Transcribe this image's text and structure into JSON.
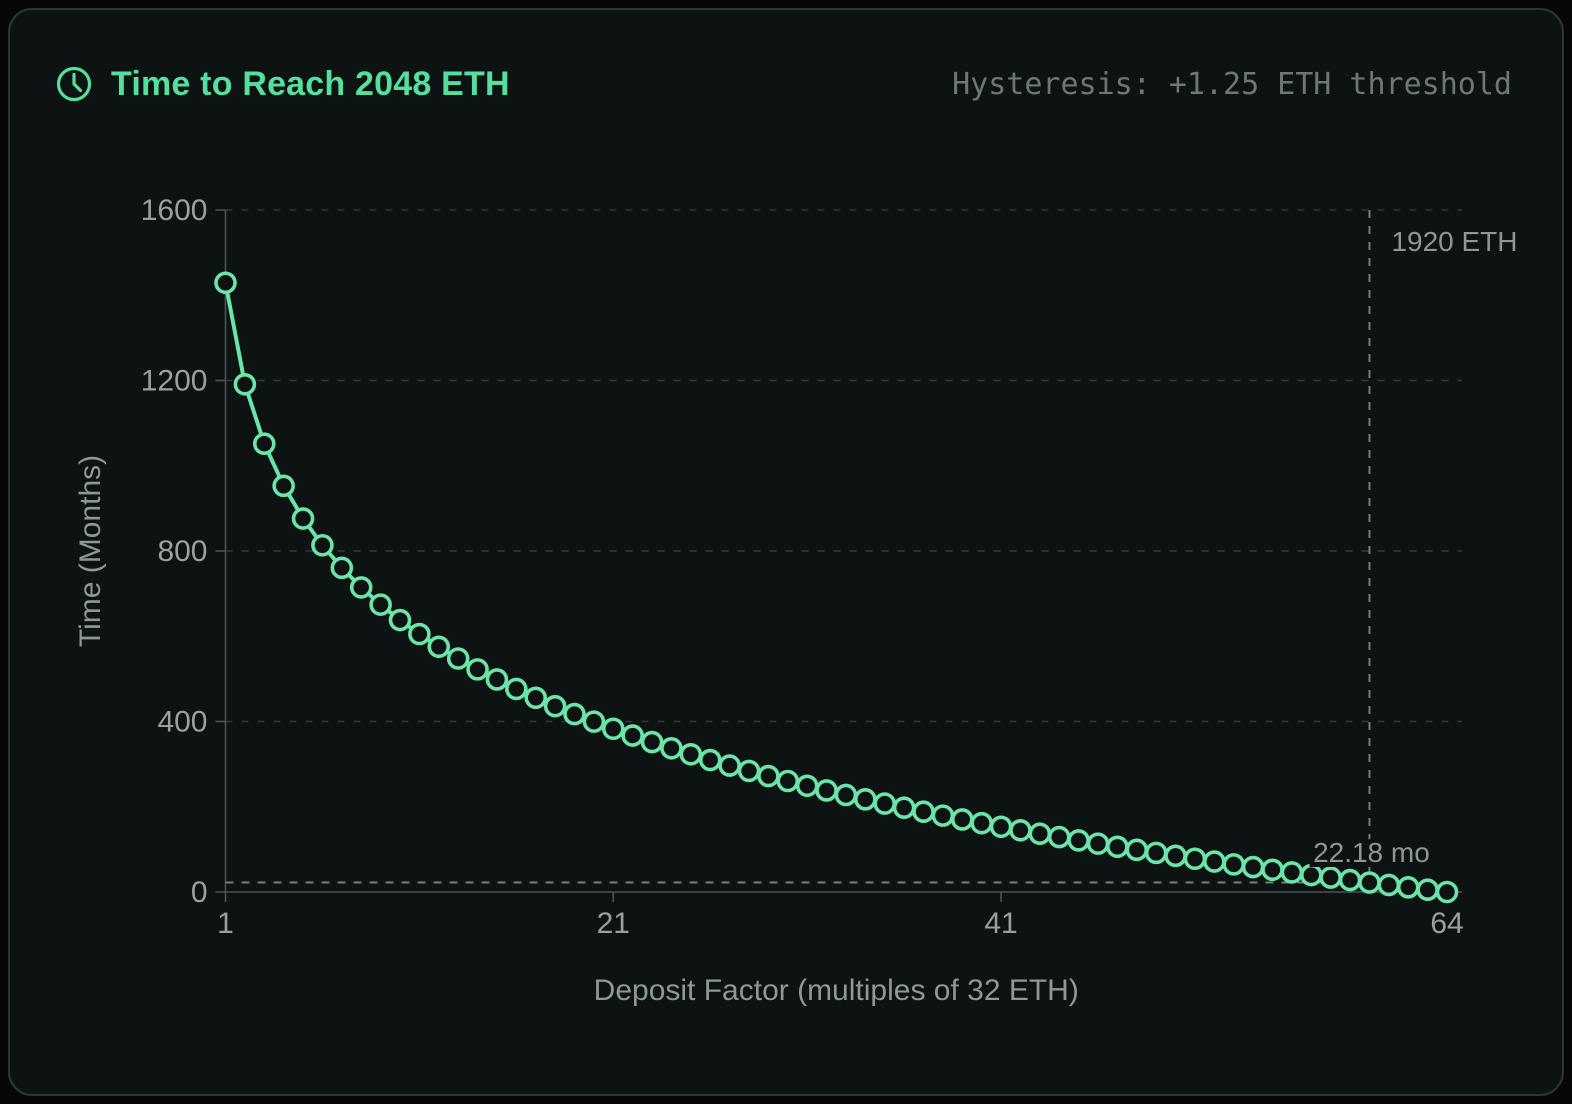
{
  "header": {
    "title": "Time to Reach 2048 ETH",
    "hysteresis_note": "Hysteresis: +1.25 ETH threshold",
    "icon": "clock-icon"
  },
  "colors": {
    "accent_green": "#58e0a0",
    "series_green": "#6ae4a8",
    "card_bg": "#0d1312",
    "card_border": "#2c3634",
    "grid": "#313b38",
    "axis": "#4a5450",
    "threshold": "#747f7b",
    "tick_text": "#97a29e",
    "axis_title_text": "#8c9995",
    "annotation_text": "#8b9894"
  },
  "chart_data": {
    "type": "line",
    "title": "Time to Reach 2048 ETH",
    "xlabel": "Deposit Factor (multiples of 32 ETH)",
    "ylabel": "Time (Months)",
    "xlim": [
      1,
      64
    ],
    "ylim": [
      0,
      1600
    ],
    "x_ticks": [
      1,
      21,
      41,
      64
    ],
    "y_ticks": [
      0,
      400,
      800,
      1200,
      1600
    ],
    "grid": "dashed-horizontal",
    "legend": false,
    "x": [
      1,
      2,
      3,
      4,
      5,
      6,
      7,
      8,
      9,
      10,
      11,
      12,
      13,
      14,
      15,
      16,
      17,
      18,
      19,
      20,
      21,
      22,
      23,
      24,
      25,
      26,
      27,
      28,
      29,
      30,
      31,
      32,
      33,
      34,
      35,
      36,
      37,
      38,
      39,
      40,
      41,
      42,
      43,
      44,
      45,
      46,
      47,
      48,
      49,
      50,
      51,
      52,
      53,
      54,
      55,
      56,
      57,
      58,
      59,
      60,
      61,
      62,
      63,
      64
    ],
    "values": [
      1429.3,
      1191.1,
      1051.7,
      952.9,
      876.2,
      813.5,
      760.5,
      714.6,
      674.2,
      638.0,
      605.2,
      575.3,
      547.8,
      522.3,
      498.6,
      476.4,
      455.6,
      436.0,
      417.4,
      399.7,
      383.0,
      367.0,
      351.7,
      337.1,
      323.1,
      309.6,
      296.6,
      284.1,
      272.1,
      260.4,
      249.1,
      238.2,
      227.6,
      217.4,
      207.4,
      197.7,
      188.3,
      179.2,
      170.2,
      161.5,
      153.0,
      144.8,
      136.7,
      128.8,
      121.0,
      113.5,
      106.1,
      98.9,
      91.8,
      84.8,
      78.0,
      71.4,
      64.8,
      58.4,
      52.1,
      45.9,
      39.8,
      33.8,
      28.0,
      22.18,
      16.5,
      10.9,
      5.4,
      0.0
    ],
    "annotations": {
      "vline": {
        "x": 60,
        "label": "1920 ETH"
      },
      "hline": {
        "y": 22.18,
        "label": "22.18 mo"
      }
    }
  }
}
